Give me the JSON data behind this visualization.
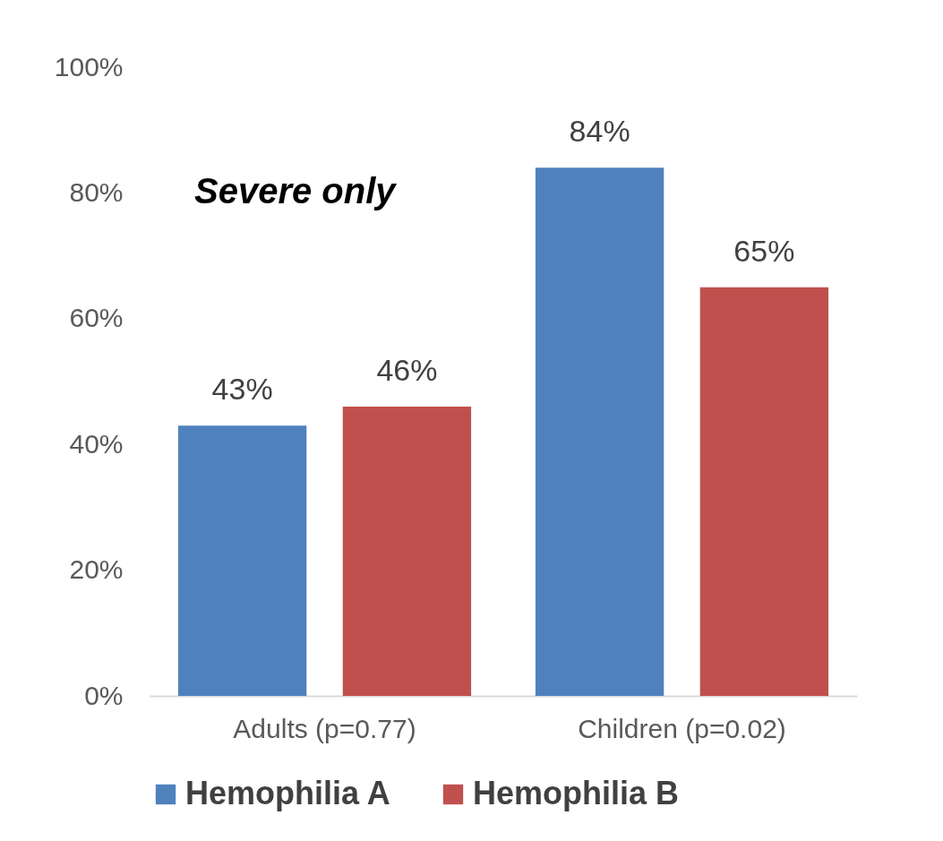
{
  "chart_data": {
    "type": "bar",
    "categories": [
      "Adults (p=0.77)",
      "Children (p=0.02)"
    ],
    "series": [
      {
        "name": "Hemophilia A",
        "color": "#4f81bd",
        "values": [
          43,
          84
        ],
        "value_labels": [
          "43%",
          "84%"
        ]
      },
      {
        "name": "Hemophilia B",
        "color": "#c0504d",
        "values": [
          46,
          65
        ],
        "value_labels": [
          "46%",
          "65%"
        ]
      }
    ],
    "ylim": [
      0,
      100
    ],
    "yticks": [
      {
        "value": 0,
        "label": "0%"
      },
      {
        "value": 20,
        "label": "20%"
      },
      {
        "value": 40,
        "label": "40%"
      },
      {
        "value": 60,
        "label": "60%"
      },
      {
        "value": 80,
        "label": "80%"
      },
      {
        "value": 100,
        "label": "100%"
      }
    ],
    "annotations": [
      "Severe only"
    ],
    "grid": false,
    "legend": "bottom"
  }
}
